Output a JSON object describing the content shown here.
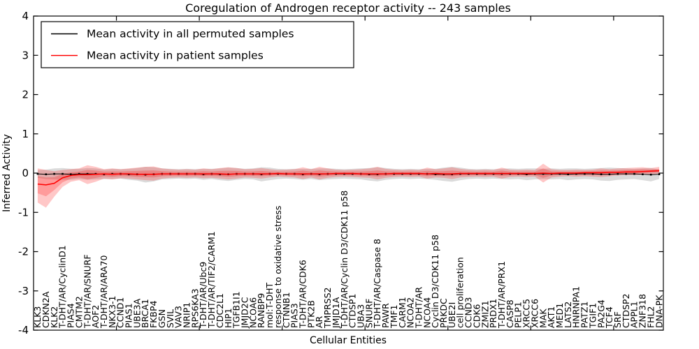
{
  "figure": {
    "title": "Coregulation of Androgen receptor activity -- 243 samples",
    "xlabel": "Cellular Entities",
    "ylabel": "Inferred Activity"
  },
  "colors": {
    "permuted_line": "#000000",
    "patient_line": "#ff0000",
    "permuted_band": "#000000",
    "patient_band": "#ff0000",
    "background": "#ffffff"
  },
  "chart_data": {
    "type": "line",
    "title": "Coregulation of Androgen receptor activity -- 243 samples",
    "xlabel": "Cellular Entities",
    "ylabel": "Inferred Activity",
    "ylim": [
      -4,
      4
    ],
    "yticks": [
      4,
      3,
      2,
      1,
      0,
      -1,
      -2,
      -3,
      -4
    ],
    "grid": false,
    "legend_position": "upper left",
    "categories": [
      "KLK3",
      "CDKN2A",
      "KLK2",
      "T-DHT/AR/CyclinD1",
      "PIAS4",
      "CMTM2",
      "T-DHT/AR/SNURF",
      "AOF2",
      "T-DHT/AR/ARA70",
      "NKX3-1",
      "CCND1",
      "PIAS1",
      "UBE3A",
      "BRCA1",
      "FKBP4",
      "GSN",
      "SVIL",
      "VAV3",
      "NRIP1",
      "RPS6KA3",
      "T-DHT/AR/Ubc9",
      "T-DHT/AR/TIF2/CARM1",
      "CDC2L1",
      "HIP1",
      "TGFB1I1",
      "JMJD2C",
      "NCOA6",
      "RANBP9",
      "mol:T-DHT",
      "response to oxidative stress",
      "CTNNB1",
      "PIAS3",
      "T-DHT/AR/CDK6",
      "PTK2B",
      "AR",
      "TMPRSS2",
      "JMJD1A",
      "T-DHT/AR/Cyclin D3/CDK11 p58",
      "CTDSP1",
      "UBA3",
      "SNURF",
      "T-DHT/AR/Caspase 8",
      "PAWR",
      "TMF1",
      "CARM1",
      "NCOA2",
      "T-DHT/AR",
      "NCOA4",
      "Cyclin D3/CDK11 p58",
      "PRKDC",
      "UBE2I",
      "cell proliferation",
      "CCND3",
      "CDK6",
      "ZMIZ1",
      "PRDX1",
      "T-DHT/AR/PRX1",
      "CASP8",
      "PELP1",
      "XRCC5",
      "XRCC6",
      "MAK",
      "AKT1",
      "MED1",
      "LATS2",
      "HNRNPA1",
      "PATZ1",
      "TGIF1",
      "PA2G4",
      "TCF4",
      "SRF",
      "CTDSP2",
      "APPL1",
      "ZNF318",
      "FHL2",
      "DNA-PK"
    ],
    "series": [
      {
        "name": "Mean activity in all permuted samples",
        "color": "#000000",
        "values": [
          -0.02,
          -0.03,
          -0.02,
          -0.02,
          -0.03,
          -0.02,
          -0.02,
          -0.02,
          -0.03,
          -0.02,
          -0.02,
          -0.03,
          -0.03,
          -0.04,
          -0.03,
          -0.02,
          -0.02,
          -0.02,
          -0.02,
          -0.02,
          -0.03,
          -0.02,
          -0.03,
          -0.03,
          -0.02,
          -0.02,
          -0.02,
          -0.03,
          -0.02,
          -0.02,
          -0.02,
          -0.02,
          -0.03,
          -0.02,
          -0.03,
          -0.02,
          -0.02,
          -0.02,
          -0.02,
          -0.02,
          -0.03,
          -0.03,
          -0.02,
          -0.02,
          -0.02,
          -0.02,
          -0.02,
          -0.02,
          -0.03,
          -0.03,
          -0.03,
          -0.02,
          -0.02,
          -0.02,
          -0.02,
          -0.02,
          -0.02,
          -0.02,
          -0.02,
          -0.03,
          -0.02,
          -0.02,
          -0.02,
          -0.02,
          -0.03,
          -0.02,
          -0.02,
          -0.02,
          -0.03,
          -0.03,
          -0.02,
          -0.02,
          -0.02,
          -0.03,
          -0.04,
          -0.03
        ],
        "band_halfwidth": [
          0.1,
          0.12,
          0.14,
          0.15,
          0.14,
          0.13,
          0.15,
          0.14,
          0.12,
          0.13,
          0.12,
          0.14,
          0.16,
          0.2,
          0.18,
          0.14,
          0.13,
          0.12,
          0.13,
          0.12,
          0.14,
          0.13,
          0.15,
          0.17,
          0.15,
          0.13,
          0.14,
          0.18,
          0.16,
          0.13,
          0.12,
          0.13,
          0.14,
          0.13,
          0.15,
          0.14,
          0.13,
          0.12,
          0.13,
          0.14,
          0.16,
          0.18,
          0.15,
          0.13,
          0.12,
          0.13,
          0.12,
          0.13,
          0.14,
          0.17,
          0.19,
          0.16,
          0.13,
          0.12,
          0.13,
          0.12,
          0.13,
          0.14,
          0.13,
          0.15,
          0.14,
          0.13,
          0.14,
          0.13,
          0.15,
          0.14,
          0.13,
          0.14,
          0.16,
          0.17,
          0.15,
          0.14,
          0.13,
          0.15,
          0.17,
          0.12
        ]
      },
      {
        "name": "Mean activity in patient samples",
        "color": "#ff0000",
        "values": [
          -0.28,
          -0.3,
          -0.26,
          -0.12,
          -0.06,
          -0.04,
          -0.04,
          -0.03,
          -0.02,
          -0.03,
          -0.02,
          -0.02,
          -0.03,
          -0.03,
          -0.03,
          -0.02,
          -0.02,
          -0.02,
          -0.02,
          -0.02,
          -0.02,
          -0.02,
          -0.02,
          -0.03,
          -0.02,
          -0.02,
          -0.02,
          -0.02,
          -0.02,
          -0.01,
          -0.02,
          -0.02,
          -0.02,
          -0.02,
          -0.02,
          -0.02,
          -0.01,
          -0.01,
          -0.01,
          -0.02,
          -0.02,
          -0.02,
          -0.02,
          -0.01,
          -0.01,
          -0.01,
          -0.01,
          -0.02,
          -0.01,
          -0.02,
          -0.02,
          -0.01,
          -0.01,
          -0.01,
          -0.01,
          -0.01,
          -0.01,
          -0.01,
          -0.01,
          -0.01,
          -0.01,
          0.0,
          -0.01,
          0.0,
          0.0,
          0.0,
          0.01,
          0.01,
          0.01,
          0.02,
          0.02,
          0.03,
          0.03,
          0.04,
          0.05,
          0.06
        ],
        "band_upper": [
          0.12,
          0.08,
          0.05,
          0.08,
          0.1,
          0.12,
          0.2,
          0.16,
          0.1,
          0.12,
          0.1,
          0.12,
          0.14,
          0.16,
          0.17,
          0.12,
          0.1,
          0.09,
          0.1,
          0.09,
          0.12,
          0.1,
          0.13,
          0.15,
          0.13,
          0.1,
          0.11,
          0.13,
          0.1,
          0.08,
          0.09,
          0.1,
          0.15,
          0.1,
          0.16,
          0.12,
          0.09,
          0.08,
          0.09,
          0.1,
          0.12,
          0.16,
          0.11,
          0.09,
          0.08,
          0.09,
          0.08,
          0.14,
          0.1,
          0.12,
          0.15,
          0.11,
          0.09,
          0.08,
          0.09,
          0.08,
          0.14,
          0.09,
          0.08,
          0.09,
          0.08,
          0.24,
          0.1,
          0.08,
          0.08,
          0.09,
          0.08,
          0.09,
          0.12,
          0.1,
          0.12,
          0.13,
          0.14,
          0.15,
          0.13,
          0.16
        ],
        "band_lower": [
          -0.75,
          -0.88,
          -0.6,
          -0.35,
          -0.22,
          -0.18,
          -0.28,
          -0.22,
          -0.14,
          -0.16,
          -0.13,
          -0.14,
          -0.16,
          -0.18,
          -0.19,
          -0.14,
          -0.12,
          -0.11,
          -0.12,
          -0.11,
          -0.13,
          -0.12,
          -0.14,
          -0.16,
          -0.14,
          -0.11,
          -0.12,
          -0.14,
          -0.11,
          -0.09,
          -0.1,
          -0.11,
          -0.15,
          -0.11,
          -0.16,
          -0.12,
          -0.1,
          -0.09,
          -0.1,
          -0.11,
          -0.12,
          -0.16,
          -0.12,
          -0.1,
          -0.09,
          -0.1,
          -0.09,
          -0.14,
          -0.11,
          -0.12,
          -0.15,
          -0.11,
          -0.1,
          -0.09,
          -0.1,
          -0.09,
          -0.14,
          -0.1,
          -0.09,
          -0.1,
          -0.09,
          -0.24,
          -0.11,
          -0.09,
          -0.08,
          -0.09,
          -0.08,
          -0.09,
          -0.1,
          -0.08,
          -0.06,
          -0.05,
          -0.05,
          -0.04,
          -0.03,
          -0.02
        ]
      }
    ]
  }
}
